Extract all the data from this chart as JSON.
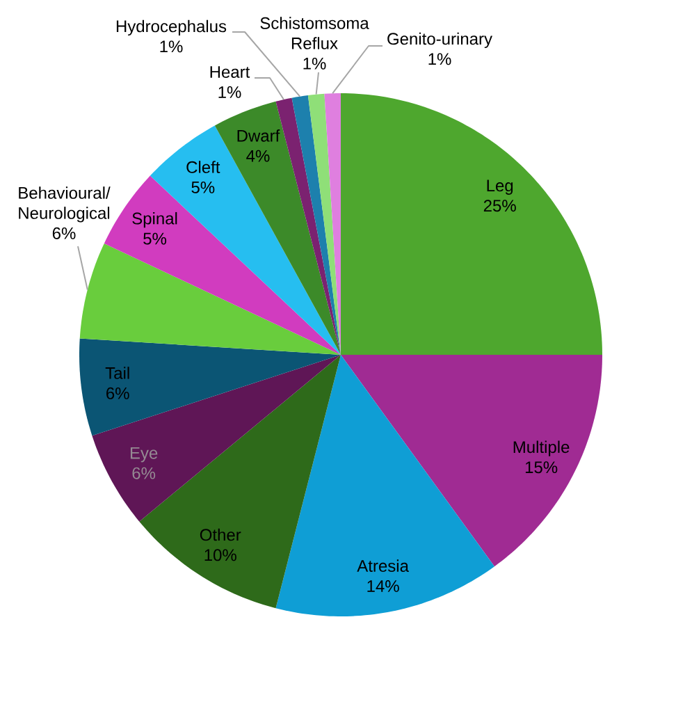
{
  "chart_data": {
    "type": "pie",
    "categories": [
      "Leg",
      "Multiple",
      "Atresia",
      "Other",
      "Eye",
      "Tail",
      "Behavioural/Neurological",
      "Spinal",
      "Cleft",
      "Dwarf",
      "Heart",
      "Hydrocephalus",
      "Schistomsoma Reflux",
      "Genito-urinary"
    ],
    "values": [
      25,
      15,
      14,
      10,
      6,
      6,
      6,
      5,
      5,
      4,
      1,
      1,
      1,
      1
    ],
    "value_labels": [
      "25%",
      "15%",
      "14%",
      "10%",
      "6%",
      "6%",
      "6%",
      "5%",
      "5%",
      "4%",
      "1%",
      "1%",
      "1%",
      "1%"
    ],
    "colors": [
      "#4ea72e",
      "#a02b93",
      "#0f9ed5",
      "#2e6a1a",
      "#5f1656",
      "#0b5574",
      "#69cd3d",
      "#d13cbf",
      "#26bef0",
      "#3c8a29",
      "#7b2270",
      "#1d80ad",
      "#8fdf78",
      "#df7fdf"
    ]
  }
}
